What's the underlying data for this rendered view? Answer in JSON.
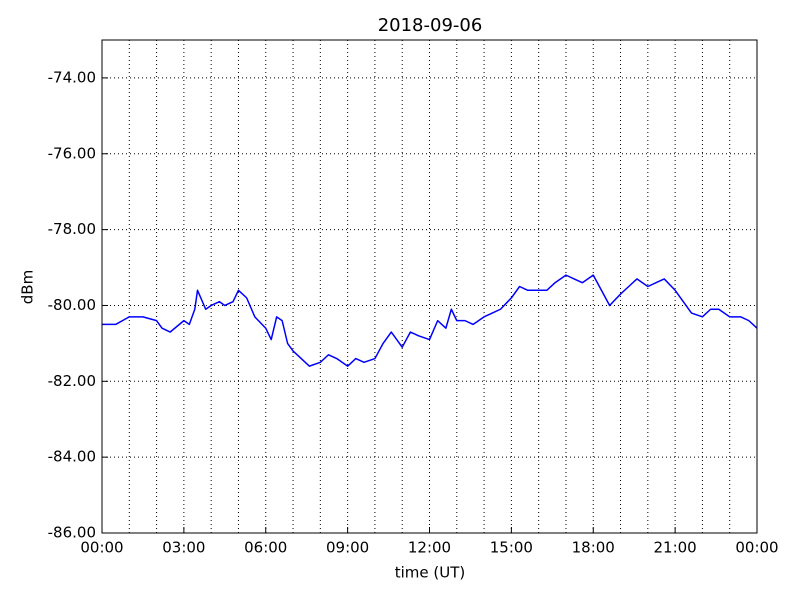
{
  "chart_data": {
    "type": "line",
    "title": "2018-09-06",
    "xlabel": "time (UT)",
    "ylabel": "dBm",
    "xlim": [
      0,
      24
    ],
    "ylim": [
      -86,
      -73
    ],
    "xticks": [
      {
        "value": 0,
        "label": "00:00"
      },
      {
        "value": 3,
        "label": "03:00"
      },
      {
        "value": 6,
        "label": "06:00"
      },
      {
        "value": 9,
        "label": "09:00"
      },
      {
        "value": 12,
        "label": "12:00"
      },
      {
        "value": 15,
        "label": "15:00"
      },
      {
        "value": 18,
        "label": "18:00"
      },
      {
        "value": 21,
        "label": "21:00"
      },
      {
        "value": 24,
        "label": "00:00"
      }
    ],
    "xminorticks": [
      1,
      2,
      4,
      5,
      7,
      8,
      10,
      11,
      13,
      14,
      16,
      17,
      19,
      20,
      22,
      23
    ],
    "yticks": [
      {
        "value": -86,
        "label": "-86.00"
      },
      {
        "value": -84,
        "label": "-84.00"
      },
      {
        "value": -82,
        "label": "-82.00"
      },
      {
        "value": -80,
        "label": "-80.00"
      },
      {
        "value": -78,
        "label": "-78.00"
      },
      {
        "value": -76,
        "label": "-76.00"
      },
      {
        "value": -74,
        "label": "-74.00"
      }
    ],
    "grid": true,
    "color": "#0000ff",
    "x": [
      0,
      0.5,
      1,
      1.5,
      2,
      2.2,
      2.5,
      3,
      3.2,
      3.4,
      3.5,
      3.8,
      4,
      4.3,
      4.5,
      4.8,
      5,
      5.3,
      5.6,
      6,
      6.2,
      6.4,
      6.6,
      6.8,
      7,
      7.3,
      7.6,
      8,
      8.3,
      8.6,
      9,
      9.3,
      9.6,
      10,
      10.3,
      10.6,
      11,
      11.3,
      11.6,
      12,
      12.3,
      12.6,
      12.8,
      13,
      13.3,
      13.6,
      14,
      14.3,
      14.6,
      15,
      15.3,
      15.6,
      16,
      16.3,
      16.6,
      17,
      17.3,
      17.6,
      18,
      18.3,
      18.6,
      19,
      19.3,
      19.6,
      20,
      20.3,
      20.6,
      21,
      21.3,
      21.6,
      22,
      22.3,
      22.6,
      23,
      23.4,
      23.7,
      24
    ],
    "values": [
      -80.5,
      -80.5,
      -80.3,
      -80.3,
      -80.4,
      -80.6,
      -80.7,
      -80.4,
      -80.5,
      -80.1,
      -79.6,
      -80.1,
      -80.0,
      -79.9,
      -80.0,
      -79.9,
      -79.6,
      -79.8,
      -80.3,
      -80.6,
      -80.9,
      -80.3,
      -80.4,
      -81.0,
      -81.2,
      -81.4,
      -81.6,
      -81.5,
      -81.3,
      -81.4,
      -81.6,
      -81.4,
      -81.5,
      -81.4,
      -81.0,
      -80.7,
      -81.1,
      -80.7,
      -80.8,
      -80.9,
      -80.4,
      -80.6,
      -80.1,
      -80.4,
      -80.4,
      -80.5,
      -80.3,
      -80.2,
      -80.1,
      -79.8,
      -79.5,
      -79.6,
      -79.6,
      -79.6,
      -79.4,
      -79.2,
      -79.3,
      -79.4,
      -79.2,
      -79.6,
      -80.0,
      -79.7,
      -79.5,
      -79.3,
      -79.5,
      -79.4,
      -79.3,
      -79.6,
      -79.9,
      -80.2,
      -80.3,
      -80.1,
      -80.1,
      -80.3,
      -80.3,
      -80.4,
      -80.6
    ]
  }
}
